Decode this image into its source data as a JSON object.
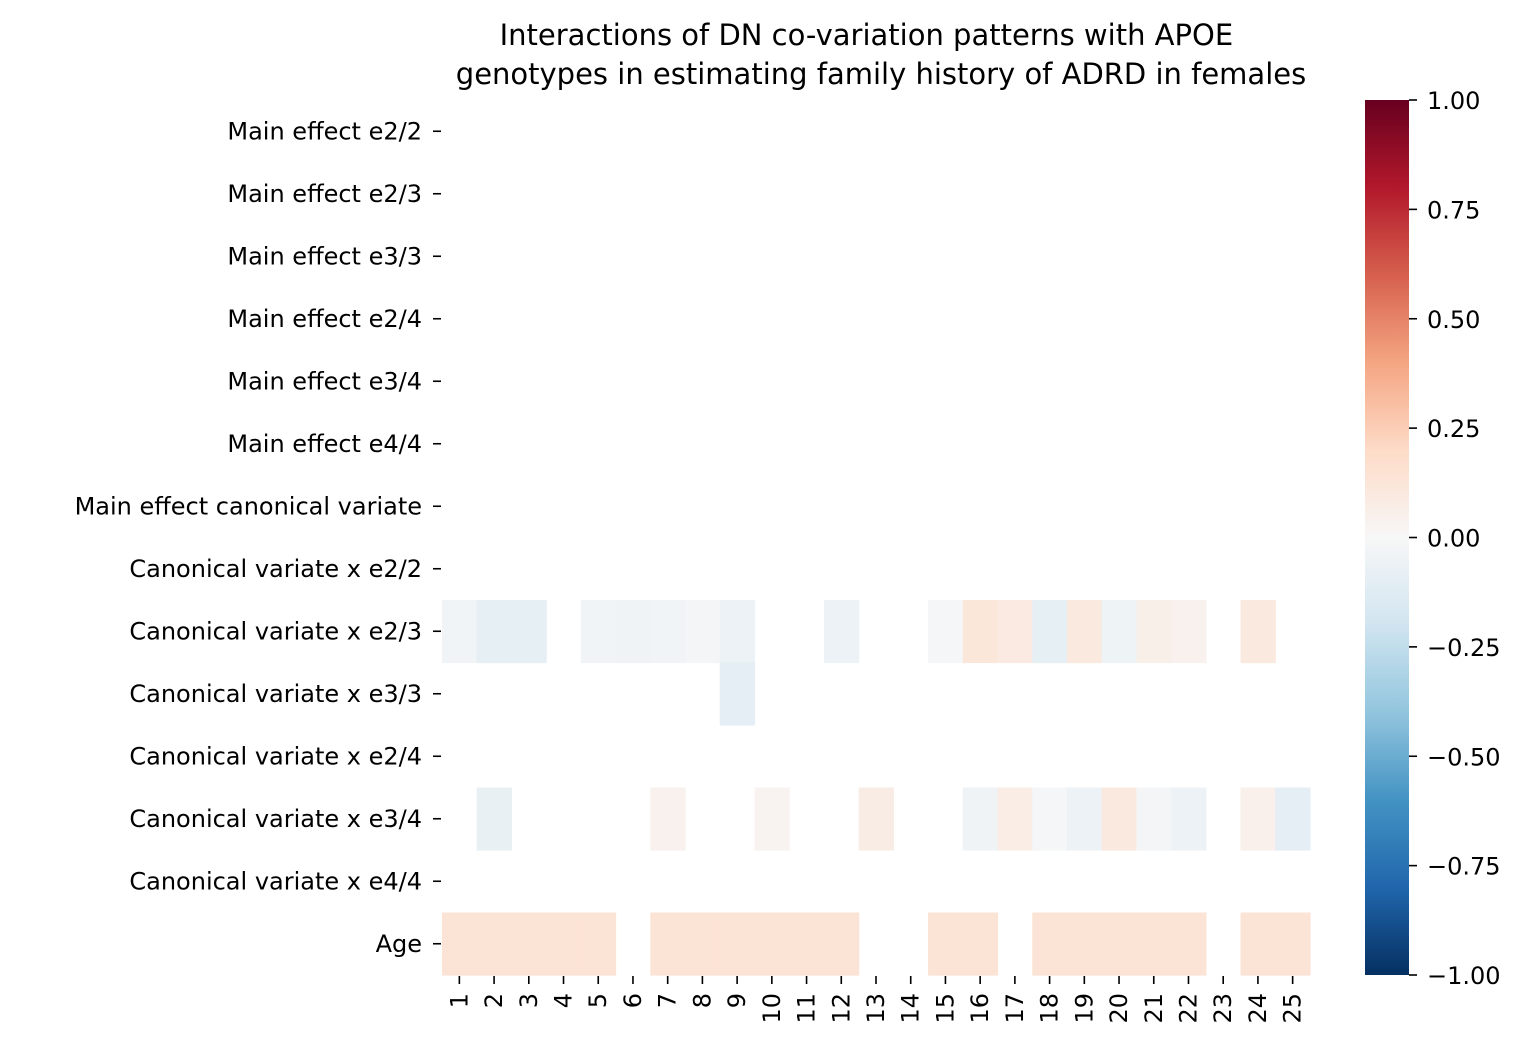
{
  "chart_data": {
    "type": "heatmap",
    "title": "Interactions of DN co-variation patterns with APOE\ngenotypes in estimating family history of ADRD in females",
    "x": [
      "1",
      "2",
      "3",
      "4",
      "5",
      "6",
      "7",
      "8",
      "9",
      "10",
      "11",
      "12",
      "13",
      "14",
      "15",
      "16",
      "17",
      "18",
      "19",
      "20",
      "21",
      "22",
      "23",
      "24",
      "25"
    ],
    "y": [
      "Main effect e2/2",
      "Main effect e2/3",
      "Main effect e3/3",
      "Main effect e2/4",
      "Main effect e3/4",
      "Main effect e4/4",
      "Main effect canonical variate",
      "Canonical variate x e2/2",
      "Canonical variate x e2/3",
      "Canonical variate x e3/3",
      "Canonical variate x e2/4",
      "Canonical variate x e3/4",
      "Canonical variate x e4/4",
      "Age"
    ],
    "values": [
      [
        null,
        null,
        null,
        null,
        null,
        null,
        null,
        null,
        null,
        null,
        null,
        null,
        null,
        null,
        null,
        null,
        null,
        null,
        null,
        null,
        null,
        null,
        null,
        null,
        null
      ],
      [
        null,
        null,
        null,
        null,
        null,
        null,
        null,
        null,
        null,
        null,
        null,
        null,
        null,
        null,
        null,
        null,
        null,
        null,
        null,
        null,
        null,
        null,
        null,
        null,
        null
      ],
      [
        null,
        null,
        null,
        null,
        null,
        null,
        null,
        null,
        null,
        null,
        null,
        null,
        null,
        null,
        null,
        null,
        null,
        null,
        null,
        null,
        null,
        null,
        null,
        null,
        null
      ],
      [
        null,
        null,
        null,
        null,
        null,
        null,
        null,
        null,
        null,
        null,
        null,
        null,
        null,
        null,
        null,
        null,
        null,
        null,
        null,
        null,
        null,
        null,
        null,
        null,
        null
      ],
      [
        null,
        null,
        null,
        null,
        null,
        null,
        null,
        null,
        null,
        null,
        null,
        null,
        null,
        null,
        null,
        null,
        null,
        null,
        null,
        null,
        null,
        null,
        null,
        null,
        null
      ],
      [
        null,
        null,
        null,
        null,
        null,
        null,
        null,
        null,
        null,
        null,
        null,
        null,
        null,
        null,
        null,
        null,
        null,
        null,
        null,
        null,
        null,
        null,
        null,
        null,
        null
      ],
      [
        null,
        null,
        null,
        null,
        null,
        null,
        null,
        null,
        null,
        null,
        null,
        null,
        null,
        null,
        null,
        null,
        null,
        null,
        null,
        null,
        null,
        null,
        null,
        null,
        null
      ],
      [
        null,
        null,
        null,
        null,
        null,
        null,
        null,
        null,
        null,
        null,
        null,
        null,
        null,
        null,
        null,
        null,
        null,
        null,
        null,
        null,
        null,
        null,
        null,
        null,
        null
      ],
      [
        -0.03,
        -0.09,
        -0.09,
        null,
        -0.03,
        -0.04,
        -0.03,
        -0.02,
        -0.06,
        null,
        null,
        -0.06,
        null,
        null,
        -0.01,
        0.12,
        0.09,
        -0.09,
        0.1,
        -0.05,
        0.06,
        0.04,
        null,
        0.1,
        null
      ],
      [
        null,
        null,
        null,
        null,
        null,
        null,
        null,
        null,
        -0.1,
        null,
        null,
        null,
        null,
        null,
        null,
        null,
        null,
        null,
        null,
        null,
        null,
        null,
        null,
        null,
        null
      ],
      [
        null,
        null,
        null,
        null,
        null,
        null,
        null,
        null,
        null,
        null,
        null,
        null,
        null,
        null,
        null,
        null,
        null,
        null,
        null,
        null,
        null,
        null,
        null,
        null,
        null
      ],
      [
        null,
        -0.08,
        null,
        null,
        null,
        null,
        0.04,
        null,
        null,
        0.03,
        null,
        null,
        0.08,
        null,
        null,
        -0.04,
        0.07,
        -0.01,
        -0.06,
        0.1,
        -0.02,
        -0.06,
        null,
        0.05,
        -0.1
      ],
      [
        null,
        null,
        null,
        null,
        null,
        null,
        null,
        null,
        null,
        null,
        null,
        null,
        null,
        null,
        null,
        null,
        null,
        null,
        null,
        null,
        null,
        null,
        null,
        null,
        null
      ],
      [
        0.14,
        0.14,
        0.14,
        0.14,
        0.14,
        null,
        0.14,
        0.14,
        0.14,
        0.14,
        0.14,
        0.14,
        null,
        null,
        0.14,
        0.14,
        null,
        0.14,
        0.14,
        0.14,
        0.14,
        0.14,
        null,
        0.14,
        0.14
      ]
    ],
    "colorbar": {
      "cmap": "RdBu_r",
      "vmin": -1.0,
      "vmax": 1.0,
      "ticks": [
        1.0,
        0.75,
        0.5,
        0.25,
        0.0,
        -0.25,
        -0.5,
        -0.75,
        -1.0
      ],
      "tick_labels": [
        "1.00",
        "0.75",
        "0.50",
        "0.25",
        "0.00",
        "−0.25",
        "−0.50",
        "−0.75",
        "−1.00"
      ]
    },
    "xlabel": "",
    "ylabel": ""
  }
}
